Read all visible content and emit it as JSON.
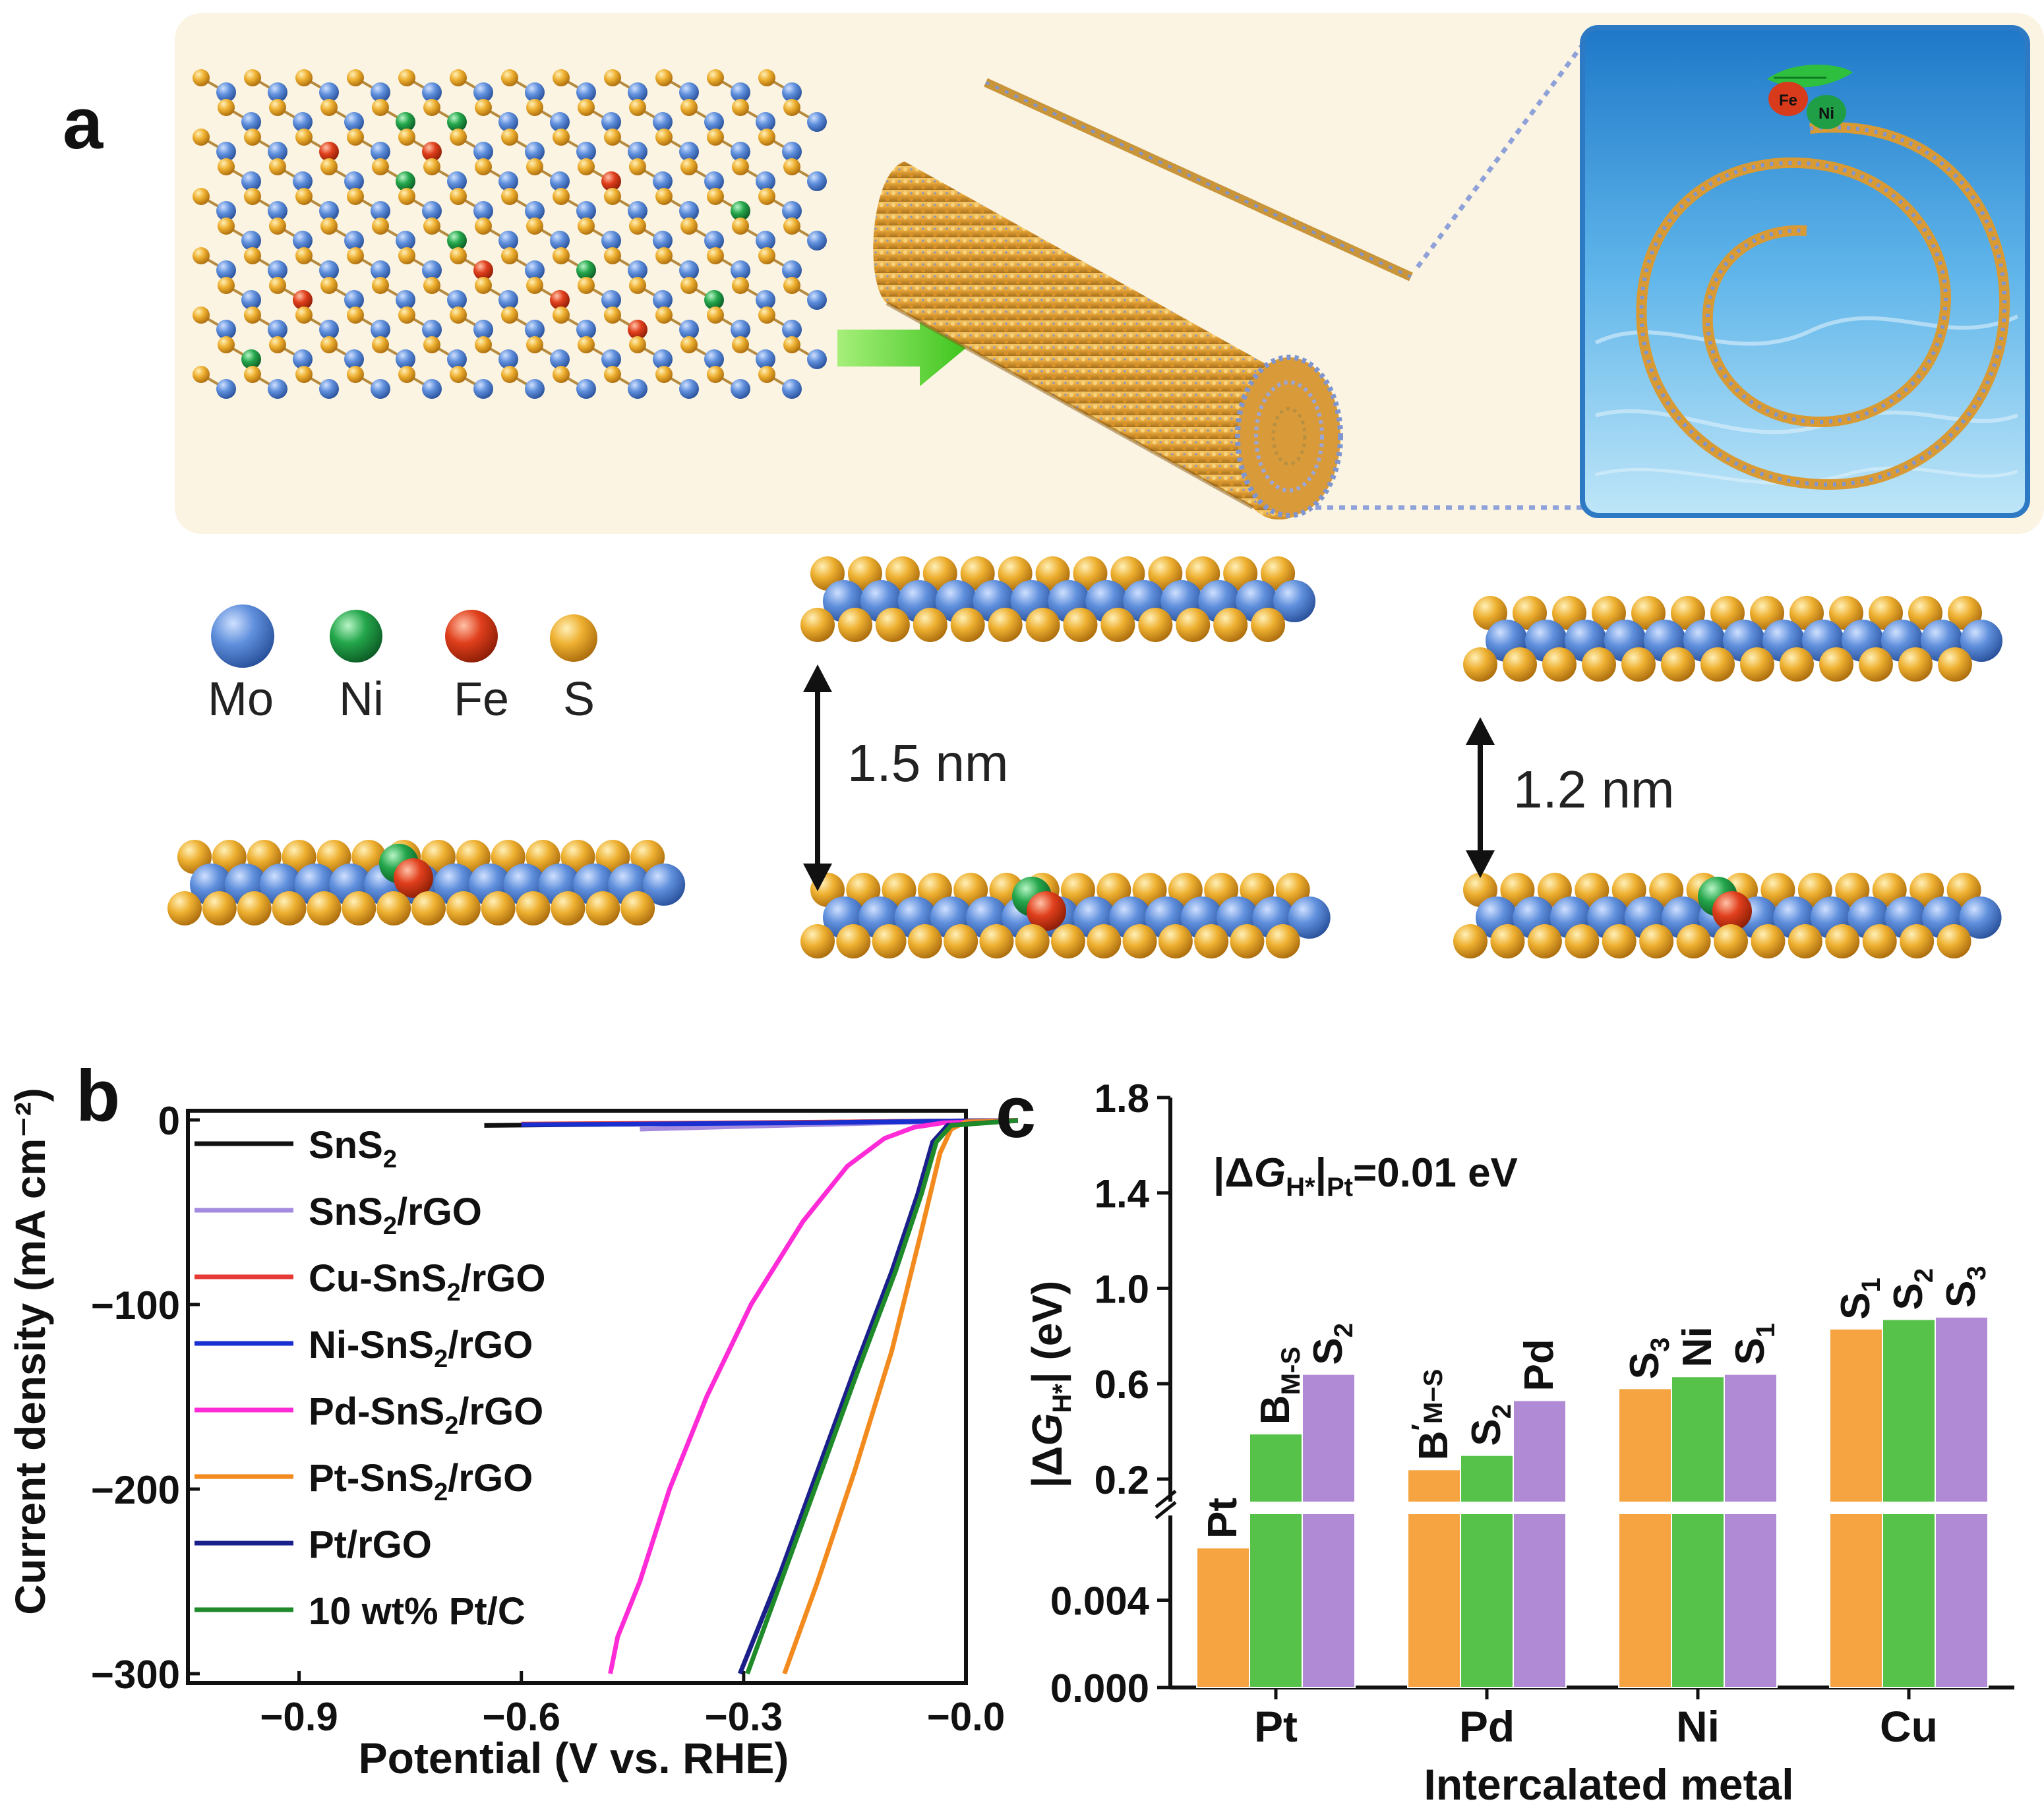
{
  "panels": {
    "a": "a",
    "b": "b",
    "c": "c"
  },
  "legend_atoms": [
    {
      "label": "Mo",
      "color": "#4a78c8"
    },
    {
      "label": "Ni",
      "color": "#1f9e45"
    },
    {
      "label": "Fe",
      "color": "#d83a1c"
    },
    {
      "label": "S",
      "color": "#e8a52a"
    }
  ],
  "spacings": {
    "left": "1.5 nm",
    "right": "1.2 nm"
  },
  "inset_tags": {
    "fe": "Fe",
    "ni": "Ni"
  },
  "chart_data": [
    {
      "type": "line",
      "panel": "b",
      "xlabel": "Potential (V vs. RHE)",
      "ylabel": "Current density (mA cm⁻²)",
      "xlim": [
        -1.05,
        0.0
      ],
      "ylim": [
        -305,
        5
      ],
      "xticks": [
        -0.9,
        -0.6,
        -0.3,
        -0.0
      ],
      "xtick_labels": [
        "−0.9",
        "−0.6",
        "−0.3",
        "−0.0"
      ],
      "yticks": [
        0,
        -100,
        -200,
        -300
      ],
      "ytick_labels": [
        "0",
        "−100",
        "−200",
        "−300"
      ],
      "series": [
        {
          "name": "SnS₂",
          "base": "SnS",
          "sub": "2",
          "tail": "",
          "color": "#111111",
          "points": [
            [
              -0.65,
              -3
            ],
            [
              -0.45,
              -2.2
            ],
            [
              -0.25,
              -1.5
            ],
            [
              -0.05,
              -0.6
            ],
            [
              0.07,
              -0.3
            ]
          ]
        },
        {
          "name": "SnS₂/rGO",
          "base": "SnS",
          "sub": "2",
          "tail": "/rGO",
          "color": "#a58be0",
          "points": [
            [
              -0.44,
              -5
            ],
            [
              -0.35,
              -4
            ],
            [
              -0.2,
              -2.5
            ],
            [
              -0.05,
              -1
            ],
            [
              0.07,
              -0.3
            ]
          ]
        },
        {
          "name": "Cu-SnS₂/rGO",
          "base": "Cu-SnS",
          "sub": "2",
          "tail": "/rGO",
          "color": "#e53935",
          "points": [
            [
              -0.6,
              -2.2
            ],
            [
              -0.4,
              -1.8
            ],
            [
              -0.2,
              -1.2
            ],
            [
              -0.05,
              -0.6
            ],
            [
              0.07,
              -0.3
            ]
          ]
        },
        {
          "name": "Ni-SnS₂/rGO",
          "base": "Ni-SnS",
          "sub": "2",
          "tail": "/rGO",
          "color": "#1a2fd0",
          "points": [
            [
              -0.6,
              -2.6
            ],
            [
              -0.4,
              -2.1
            ],
            [
              -0.2,
              -1.5
            ],
            [
              -0.05,
              -0.7
            ],
            [
              0.07,
              -0.3
            ]
          ]
        },
        {
          "name": "Pd-SnS₂/rGO",
          "base": "Pd-SnS",
          "sub": "2",
          "tail": "/rGO",
          "color": "#ff2bd6",
          "points": [
            [
              -0.48,
              -300
            ],
            [
              -0.47,
              -280
            ],
            [
              -0.44,
              -250
            ],
            [
              -0.4,
              -200
            ],
            [
              -0.35,
              -150
            ],
            [
              -0.29,
              -100
            ],
            [
              -0.22,
              -55
            ],
            [
              -0.16,
              -25
            ],
            [
              -0.11,
              -10
            ],
            [
              -0.07,
              -4
            ],
            [
              -0.03,
              -1.5
            ],
            [
              0.07,
              -0.5
            ]
          ]
        },
        {
          "name": "Pt-SnS₂/rGO",
          "base": "Pt-SnS",
          "sub": "2",
          "tail": "/rGO",
          "color": "#f28a1e",
          "points": [
            [
              -0.245,
              -300
            ],
            [
              -0.2,
              -250
            ],
            [
              -0.15,
              -190
            ],
            [
              -0.1,
              -125
            ],
            [
              -0.06,
              -60
            ],
            [
              -0.035,
              -18
            ],
            [
              -0.02,
              -5
            ],
            [
              0.0,
              -1
            ],
            [
              0.07,
              -0.3
            ]
          ]
        },
        {
          "name": "Pt/rGO",
          "base": "Pt/rGO",
          "sub": "",
          "tail": "",
          "color": "#1b1f8a",
          "points": [
            [
              -0.305,
              -300
            ],
            [
              -0.25,
              -245
            ],
            [
              -0.2,
              -190
            ],
            [
              -0.15,
              -135
            ],
            [
              -0.1,
              -82
            ],
            [
              -0.065,
              -40
            ],
            [
              -0.045,
              -12
            ],
            [
              -0.025,
              -3
            ],
            [
              0.07,
              -0.3
            ]
          ]
        },
        {
          "name": "10 wt% Pt/C",
          "base": "10 wt% Pt/C",
          "sub": "",
          "tail": "",
          "color": "#1f8a2a",
          "points": [
            [
              -0.295,
              -300
            ],
            [
              -0.245,
              -245
            ],
            [
              -0.195,
              -190
            ],
            [
              -0.145,
              -135
            ],
            [
              -0.095,
              -82
            ],
            [
              -0.06,
              -40
            ],
            [
              -0.04,
              -12
            ],
            [
              -0.02,
              -3
            ],
            [
              0.07,
              -0.3
            ]
          ]
        }
      ]
    },
    {
      "type": "bar",
      "panel": "c",
      "xlabel": "Intercalated metal",
      "ylabel": "|ΔGH*| (eV)",
      "ylabel_parts": {
        "pre": "|Δ",
        "g": "G",
        "sub": "H*",
        "post": "| (eV)"
      },
      "annotation": {
        "pre": "|Δ",
        "g": "G",
        "sub1": "H*",
        "mid": "|",
        "sub2": "Pt",
        "post": "=0.01 eV"
      },
      "categories": [
        "Pt",
        "Pd",
        "Ni",
        "Cu"
      ],
      "upper_axis": {
        "ylim": [
          0.0,
          1.8
        ],
        "ticks": [
          0.2,
          0.6,
          1.0,
          1.4,
          1.8
        ],
        "tick_labels": [
          "0.2",
          "0.6",
          "1.0",
          "1.4",
          "1.8"
        ]
      },
      "lower_axis": {
        "ylim": [
          0.0,
          0.008
        ],
        "ticks": [
          0.0,
          0.004
        ],
        "tick_labels": [
          "0.000",
          "0.004"
        ]
      },
      "series_colors": [
        "#f5a441",
        "#57c24a",
        "#b08ad4"
      ],
      "bars": [
        {
          "category": "Pt",
          "label": "Pt",
          "lsub": "",
          "lprime": false,
          "value": 0.0064,
          "axis": "lower",
          "color": 0
        },
        {
          "category": "Pt",
          "label": "B",
          "lsub": "M-S",
          "lprime": false,
          "value": 0.39,
          "axis": "upper",
          "color": 1
        },
        {
          "category": "Pt",
          "label": "S",
          "lsub": "2",
          "lprime": false,
          "value": 0.64,
          "axis": "upper",
          "color": 2
        },
        {
          "category": "Pd",
          "label": "B",
          "lsub": "M−S",
          "lprime": true,
          "value": 0.24,
          "axis": "upper",
          "color": 0
        },
        {
          "category": "Pd",
          "label": "S",
          "lsub": "2",
          "lprime": false,
          "value": 0.3,
          "axis": "upper",
          "color": 1
        },
        {
          "category": "Pd",
          "label": "Pd",
          "lsub": "",
          "lprime": false,
          "value": 0.53,
          "axis": "upper",
          "color": 2
        },
        {
          "category": "Ni",
          "label": "S",
          "lsub": "3",
          "lprime": false,
          "value": 0.58,
          "axis": "upper",
          "color": 0
        },
        {
          "category": "Ni",
          "label": "Ni",
          "lsub": "",
          "lprime": false,
          "value": 0.63,
          "axis": "upper",
          "color": 1
        },
        {
          "category": "Ni",
          "label": "S",
          "lsub": "1",
          "lprime": false,
          "value": 0.64,
          "axis": "upper",
          "color": 2
        },
        {
          "category": "Cu",
          "label": "S",
          "lsub": "1",
          "lprime": false,
          "value": 0.83,
          "axis": "upper",
          "color": 0
        },
        {
          "category": "Cu",
          "label": "S",
          "lsub": "2",
          "lprime": false,
          "value": 0.87,
          "axis": "upper",
          "color": 1
        },
        {
          "category": "Cu",
          "label": "S",
          "lsub": "3",
          "lprime": false,
          "value": 0.88,
          "axis": "upper",
          "color": 2
        }
      ]
    }
  ]
}
